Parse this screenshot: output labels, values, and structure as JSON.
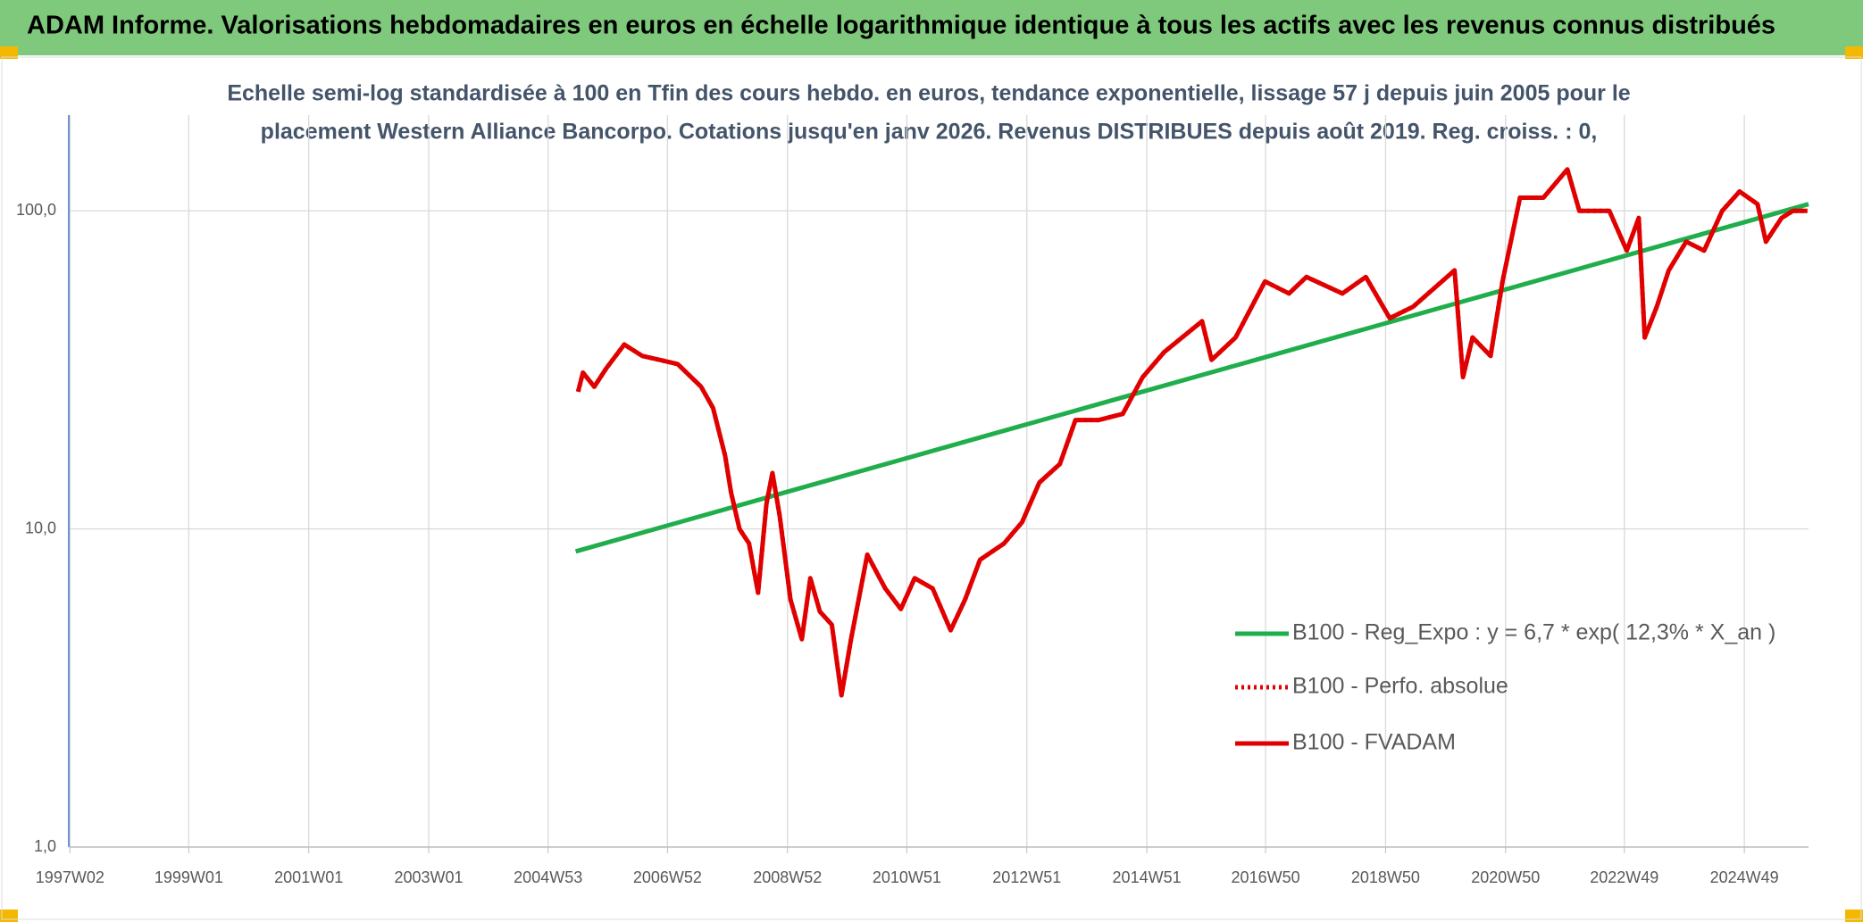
{
  "banner": "ADAM Informe. Valorisations hebdomadaires en euros en échelle logarithmique identique à tous les actifs avec les revenus connus distribués",
  "chart_data": {
    "type": "line",
    "title": "Echelle semi-log standardisée à 100 en Tfin des cours hebdo. en euros, tendance exponentielle, lissage 57 j depuis juin 2005 pour le",
    "subtitle": "placement Western Alliance Bancorpo. Cotations jusqu'en janv 2026. Revenus DISTRIBUES depuis août 2019. Reg. croiss. : 0,",
    "log_y": true,
    "grid": true,
    "legend": "lower right",
    "xlim": [
      1997.0,
      2026.0
    ],
    "xticks": [
      {
        "value": 1997.02,
        "label": "1997W02"
      },
      {
        "value": 1999.0,
        "label": "1999W01"
      },
      {
        "value": 2001.0,
        "label": "2001W01"
      },
      {
        "value": 2003.0,
        "label": "2003W01"
      },
      {
        "value": 2004.99,
        "label": "2004W53"
      },
      {
        "value": 2006.98,
        "label": "2006W52"
      },
      {
        "value": 2008.98,
        "label": "2008W52"
      },
      {
        "value": 2010.97,
        "label": "2010W51"
      },
      {
        "value": 2012.97,
        "label": "2012W51"
      },
      {
        "value": 2014.97,
        "label": "2014W51"
      },
      {
        "value": 2016.95,
        "label": "2016W50"
      },
      {
        "value": 2018.95,
        "label": "2018W50"
      },
      {
        "value": 2020.95,
        "label": "2020W50"
      },
      {
        "value": 2022.93,
        "label": "2022W49"
      },
      {
        "value": 2024.93,
        "label": "2024W49"
      }
    ],
    "ylim": [
      1,
      200
    ],
    "yticks": [
      {
        "value": 1,
        "label": "1,0"
      },
      {
        "value": 10,
        "label": "10,0"
      },
      {
        "value": 100,
        "label": "100,0"
      }
    ],
    "series": [
      {
        "name": "B100 - Reg_Expo : y = 6,7 * exp( 12,3% *  X_an )",
        "color": "#1fae4b",
        "style": "solid",
        "x": [
          2005.45,
          2026.0
        ],
        "values": [
          8.5,
          105
        ]
      },
      {
        "name": "B100 - Perfo. absolue",
        "color": "#e00000",
        "style": "dotted",
        "x": [
          2005.49,
          2005.57,
          2005.76,
          2005.96,
          2006.26,
          2006.56,
          2006.85,
          2007.15,
          2007.54,
          2007.74,
          2007.94,
          2008.04,
          2008.18,
          2008.34,
          2008.49,
          2008.63,
          2008.73,
          2008.85,
          2009.03,
          2009.22,
          2009.36,
          2009.52,
          2009.72,
          2009.88,
          2010.04,
          2010.31,
          2010.61,
          2010.87,
          2011.1,
          2011.4,
          2011.7,
          2011.94,
          2012.19,
          2012.59,
          2012.89,
          2013.18,
          2013.52,
          2013.78,
          2014.17,
          2014.57,
          2014.9,
          2015.26,
          2015.89,
          2016.05,
          2016.45,
          2016.94,
          2017.34,
          2017.63,
          2018.23,
          2018.62,
          2019.02,
          2019.41,
          2020.1,
          2020.24,
          2020.4,
          2020.7,
          2020.9,
          2021.19,
          2021.58,
          2021.98,
          2022.18,
          2022.68,
          2022.97,
          2023.17,
          2023.27,
          2023.47,
          2023.67,
          2023.96,
          2024.26,
          2024.56,
          2024.85,
          2025.15,
          2025.29,
          2025.55,
          2025.74,
          2025.98
        ],
        "values": [
          27,
          31,
          28,
          32,
          38,
          35,
          34,
          33,
          28,
          24,
          17,
          13,
          10,
          9,
          6.3,
          12,
          15,
          11,
          6,
          4.5,
          7,
          5.5,
          5,
          3.0,
          4.5,
          8.3,
          6.5,
          5.6,
          7,
          6.5,
          4.8,
          6,
          8,
          9,
          10.5,
          14,
          16,
          22,
          22,
          23,
          30,
          36,
          45,
          34,
          40,
          60,
          55,
          62,
          55,
          62,
          46,
          50,
          65,
          30,
          40,
          35,
          60,
          110,
          110,
          135,
          100,
          100,
          75,
          95,
          40,
          50,
          65,
          80,
          75,
          100,
          115,
          105,
          80,
          95,
          100,
          100
        ]
      },
      {
        "name": "B100 - FVADAM",
        "color": "#e00000",
        "style": "solid",
        "x": [
          2005.49,
          2005.57,
          2005.76,
          2005.96,
          2006.26,
          2006.56,
          2006.85,
          2007.15,
          2007.54,
          2007.74,
          2007.94,
          2008.04,
          2008.18,
          2008.34,
          2008.49,
          2008.63,
          2008.73,
          2008.85,
          2009.03,
          2009.22,
          2009.36,
          2009.52,
          2009.72,
          2009.88,
          2010.04,
          2010.31,
          2010.61,
          2010.87,
          2011.1,
          2011.4,
          2011.7,
          2011.94,
          2012.19,
          2012.59,
          2012.89,
          2013.18,
          2013.52,
          2013.78,
          2014.17,
          2014.57,
          2014.9,
          2015.26,
          2015.89,
          2016.05,
          2016.45,
          2016.94,
          2017.34,
          2017.63,
          2018.23,
          2018.62,
          2019.02,
          2019.41,
          2020.1,
          2020.24,
          2020.4,
          2020.7,
          2020.9,
          2021.19,
          2021.58,
          2021.98,
          2022.18,
          2022.68,
          2022.97,
          2023.17,
          2023.27,
          2023.47,
          2023.67,
          2023.96,
          2024.26,
          2024.56,
          2024.85,
          2025.15,
          2025.29,
          2025.55,
          2025.74,
          2025.98
        ],
        "values": [
          27,
          31,
          28,
          32,
          38,
          35,
          34,
          33,
          28,
          24,
          17,
          13,
          10,
          9,
          6.3,
          12,
          15,
          11,
          6,
          4.5,
          7,
          5.5,
          5,
          3.0,
          4.5,
          8.3,
          6.5,
          5.6,
          7,
          6.5,
          4.8,
          6,
          8,
          9,
          10.5,
          14,
          16,
          22,
          22,
          23,
          30,
          36,
          45,
          34,
          40,
          60,
          55,
          62,
          55,
          62,
          46,
          50,
          65,
          30,
          40,
          35,
          60,
          110,
          110,
          135,
          100,
          100,
          75,
          95,
          40,
          50,
          65,
          80,
          75,
          100,
          115,
          105,
          80,
          95,
          100,
          100
        ]
      }
    ]
  }
}
